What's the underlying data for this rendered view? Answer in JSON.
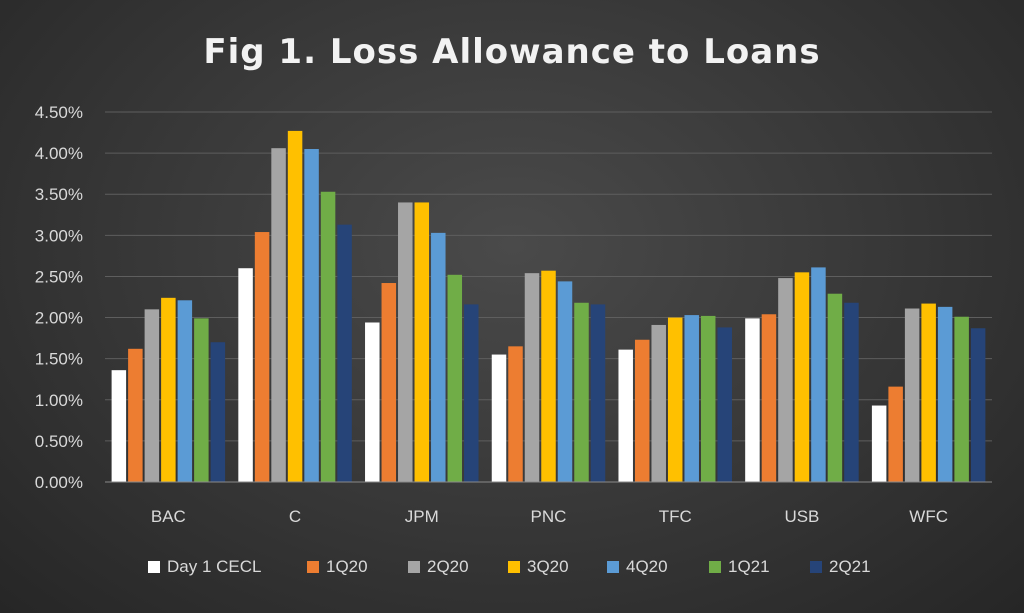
{
  "chart_data": {
    "type": "bar",
    "title": "Fig 1. Loss Allowance to Loans",
    "xlabel": "",
    "ylabel": "",
    "categories": [
      "BAC",
      "C",
      "JPM",
      "PNC",
      "TFC",
      "USB",
      "WFC"
    ],
    "ylim": [
      0,
      4.5
    ],
    "yticks": [
      {
        "value": 0.0,
        "label": "0.00%"
      },
      {
        "value": 0.5,
        "label": "0.50%"
      },
      {
        "value": 1.0,
        "label": "1.00%"
      },
      {
        "value": 1.5,
        "label": "1.50%"
      },
      {
        "value": 2.0,
        "label": "2.00%"
      },
      {
        "value": 2.5,
        "label": "2.50%"
      },
      {
        "value": 3.0,
        "label": "3.00%"
      },
      {
        "value": 3.5,
        "label": "3.50%"
      },
      {
        "value": 4.0,
        "label": "4.00%"
      },
      {
        "value": 4.5,
        "label": "4.50%"
      }
    ],
    "grid": true,
    "legend_position": "bottom",
    "series": [
      {
        "name": "Day 1 CECL",
        "color": "#ffffff",
        "values": [
          1.36,
          2.6,
          1.94,
          1.55,
          1.61,
          1.99,
          0.93
        ]
      },
      {
        "name": "1Q20",
        "color": "#ed7d31",
        "values": [
          1.62,
          3.04,
          2.42,
          1.65,
          1.73,
          2.04,
          1.16
        ]
      },
      {
        "name": "2Q20",
        "color": "#a5a5a5",
        "values": [
          2.1,
          4.06,
          3.4,
          2.54,
          1.91,
          2.48,
          2.11
        ]
      },
      {
        "name": "3Q20",
        "color": "#ffc000",
        "values": [
          2.24,
          4.27,
          3.4,
          2.57,
          2.0,
          2.55,
          2.17
        ]
      },
      {
        "name": "4Q20",
        "color": "#5b9bd5",
        "values": [
          2.21,
          4.05,
          3.03,
          2.44,
          2.03,
          2.61,
          2.13
        ]
      },
      {
        "name": "1Q21",
        "color": "#70ad47",
        "values": [
          1.99,
          3.53,
          2.52,
          2.18,
          2.02,
          2.29,
          2.01
        ]
      },
      {
        "name": "2Q21",
        "color": "#264478",
        "values": [
          1.7,
          3.13,
          2.16,
          2.16,
          1.88,
          2.18,
          1.87
        ]
      }
    ]
  }
}
